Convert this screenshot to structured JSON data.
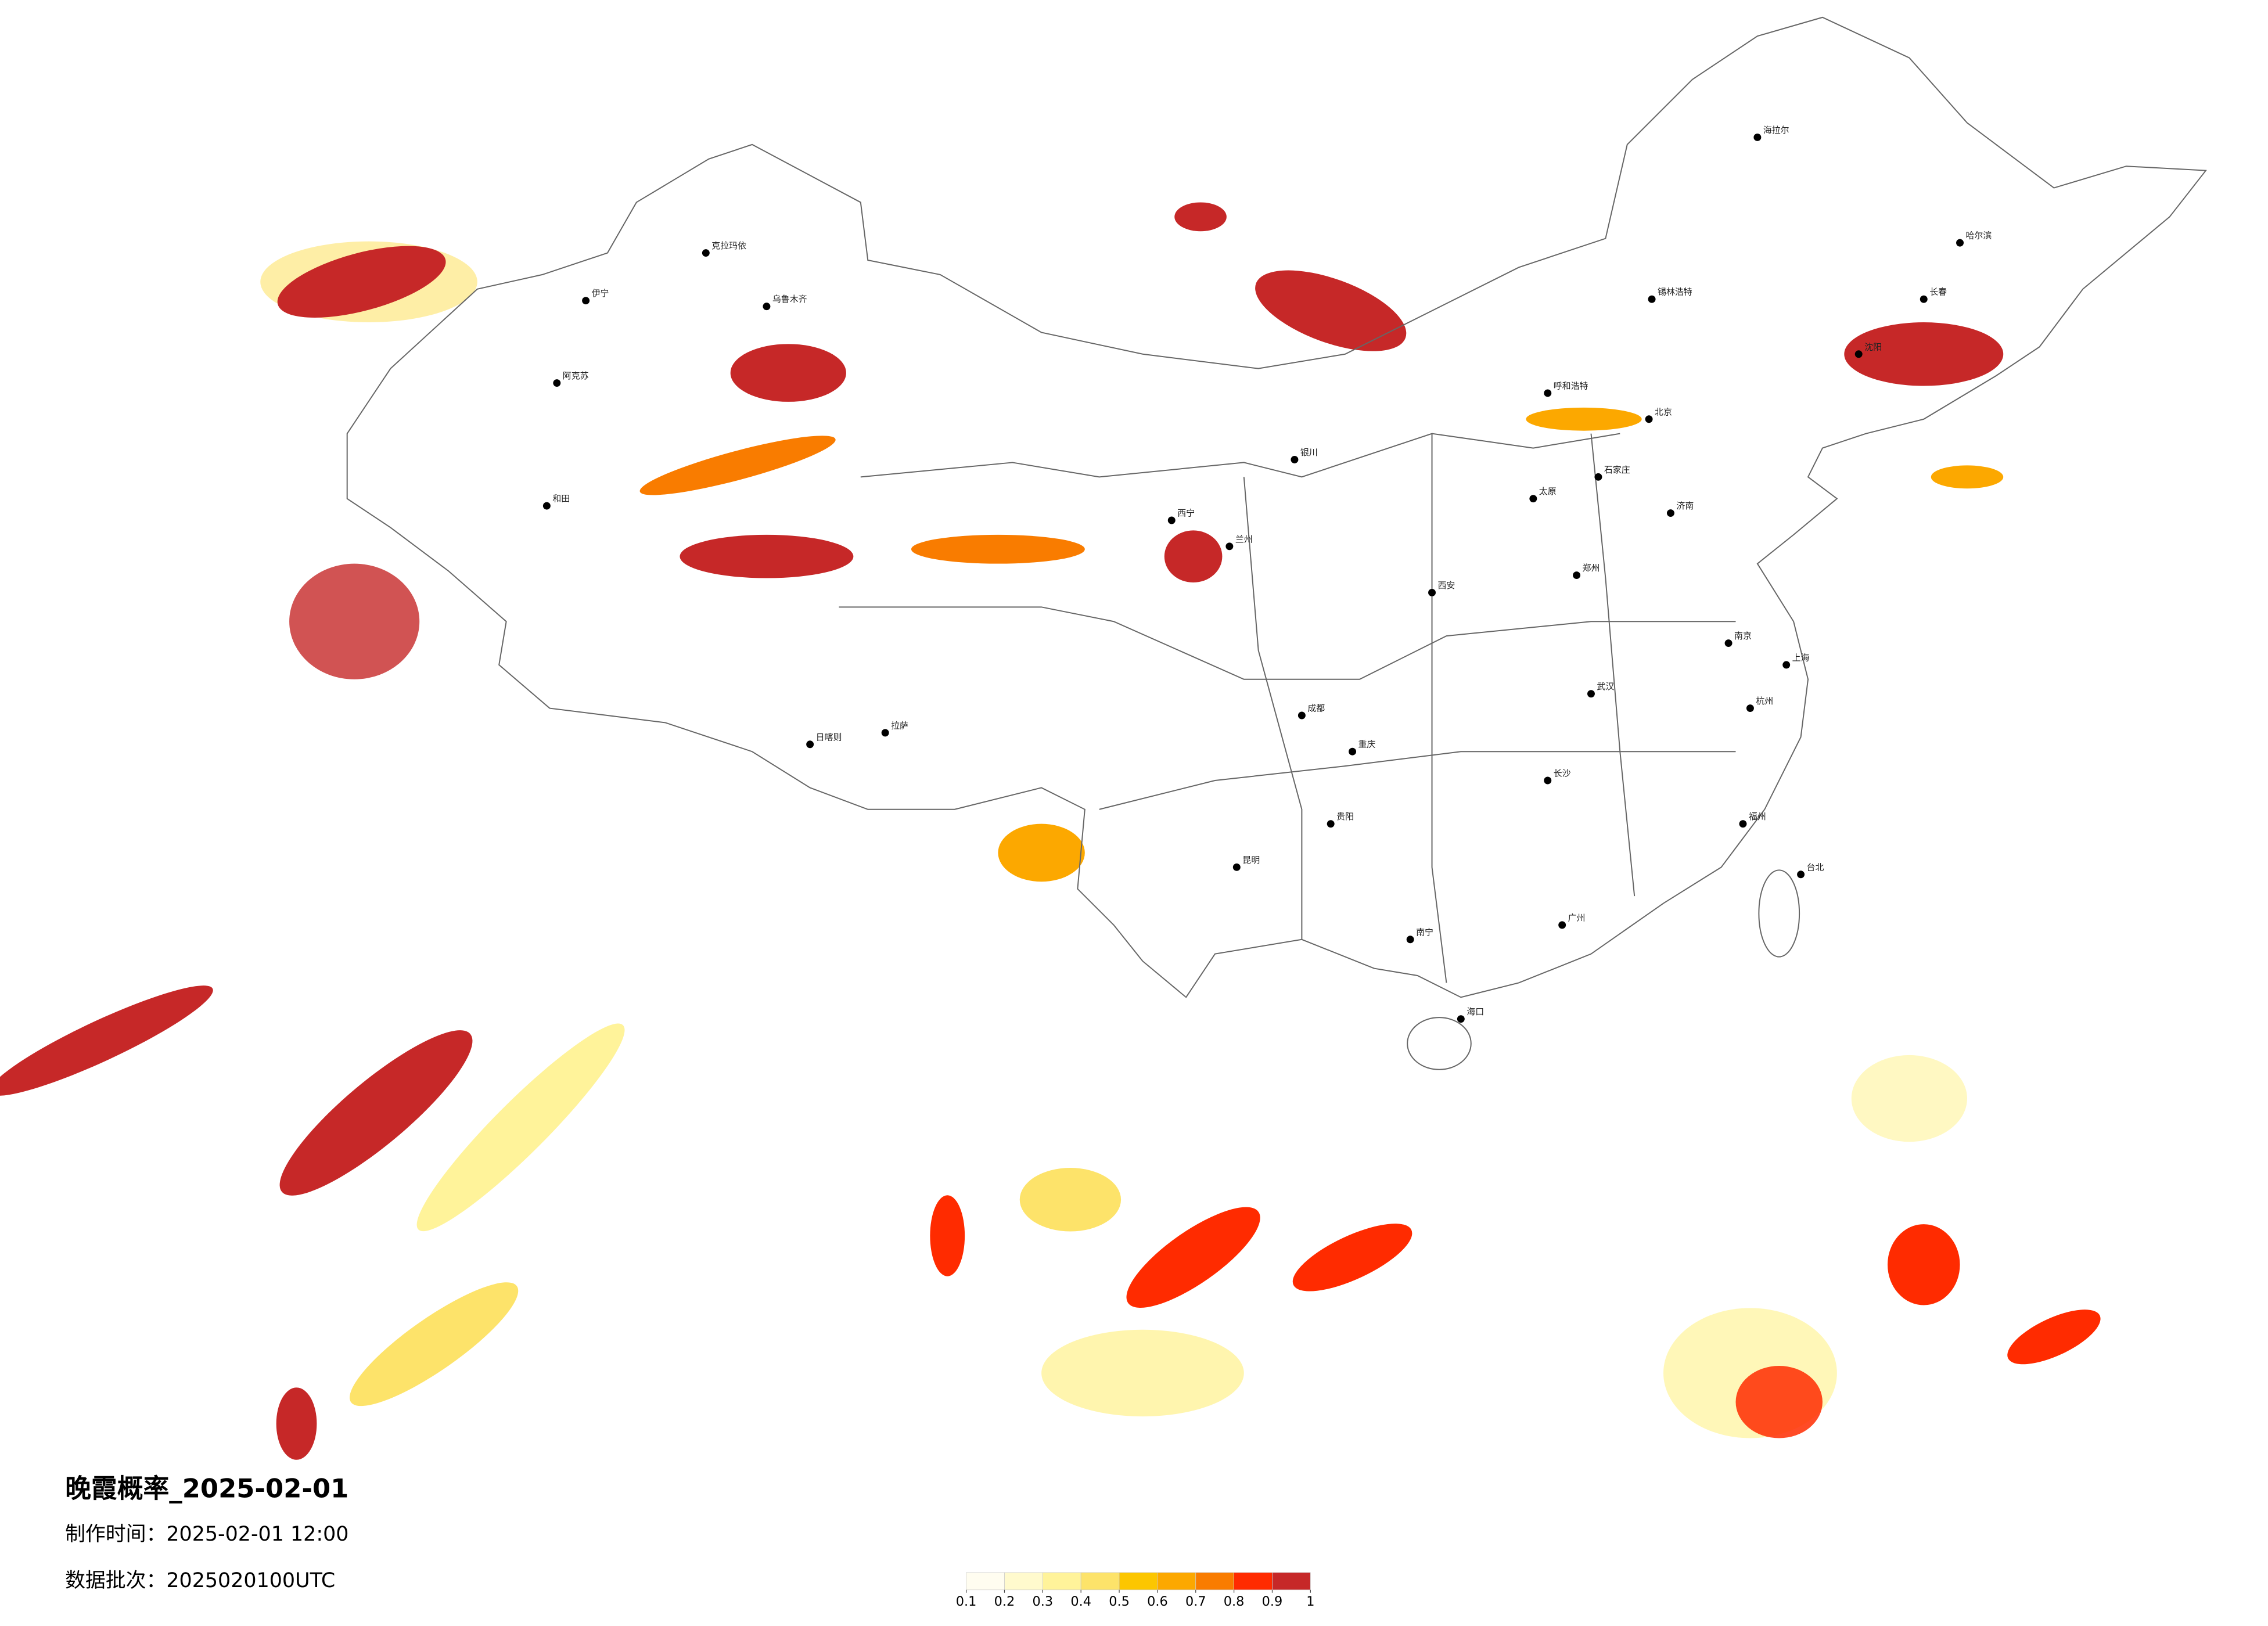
{
  "header": {
    "title": "晚霞概率_2025-02-01",
    "make_time": "制作时间：2025-02-01 12:00",
    "batch": "数据批次：2025020100UTC"
  },
  "legend": {
    "ticks": [
      0.1,
      0.2,
      0.3,
      0.4,
      0.5,
      0.6,
      0.7,
      0.8,
      0.9,
      1
    ],
    "colors": [
      "#fffdf0",
      "#fffacd",
      "#fff39a",
      "#fde36a",
      "#fcc600",
      "#fca800",
      "#f97c00",
      "#ff2b00",
      "#c62828"
    ]
  },
  "cities": [
    "海拉尔",
    "哈尔滨",
    "长春",
    "沈阳",
    "锡林浩特",
    "呼和浩特",
    "北京",
    "石家庄",
    "太原",
    "济南",
    "郑州",
    "西安",
    "兰州",
    "银川",
    "西宁",
    "成都",
    "重庆",
    "贵阳",
    "昆明",
    "南宁",
    "广州",
    "长沙",
    "武汉",
    "南京",
    "上海",
    "杭州",
    "福州",
    "台北",
    "海口",
    "拉萨",
    "日喀则",
    "乌鲁木齐",
    "克拉玛依",
    "伊宁",
    "阿克苏",
    "和田"
  ]
}
